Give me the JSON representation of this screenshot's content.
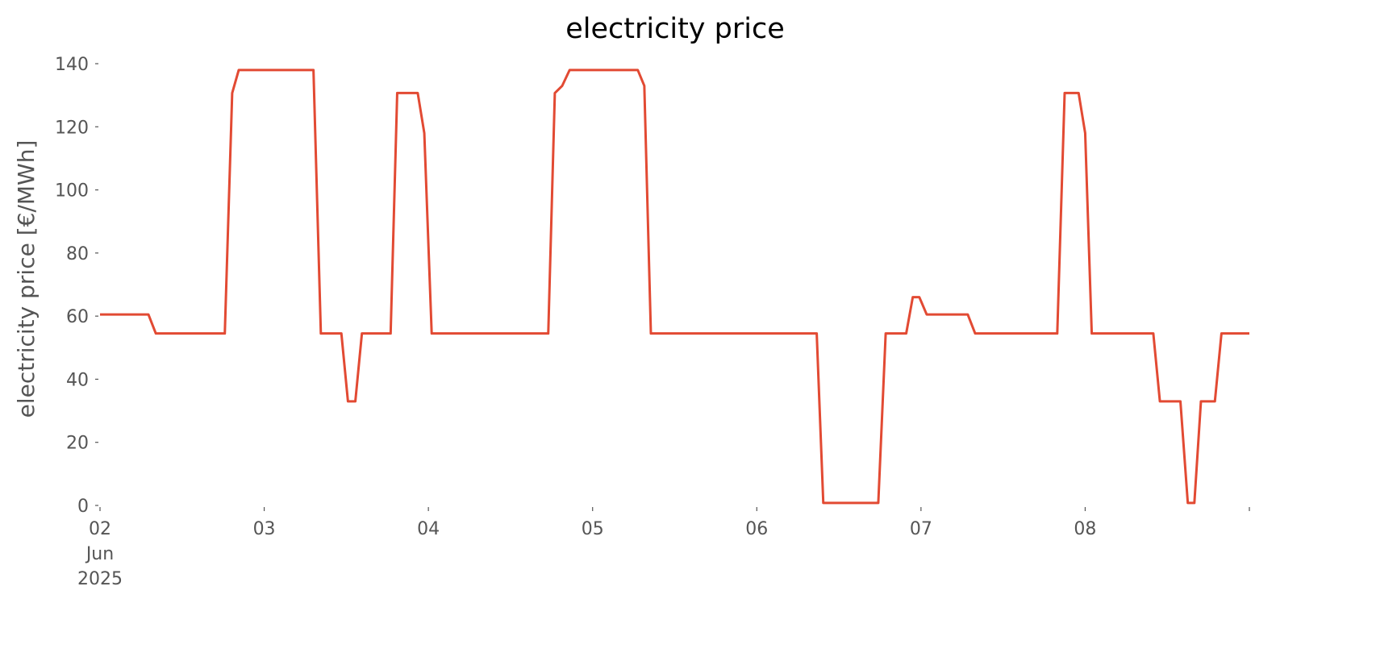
{
  "chart_data": {
    "type": "line",
    "title": "electricity price",
    "y_label": "electricity price [€/MWh]",
    "x": [
      2.0,
      2.295,
      2.34,
      2.76,
      2.805,
      2.845,
      3.3,
      3.345,
      3.47,
      3.51,
      3.555,
      3.595,
      3.77,
      3.81,
      3.935,
      3.975,
      4.02,
      4.73,
      4.77,
      4.815,
      4.86,
      5.275,
      5.315,
      5.355,
      6.365,
      6.405,
      6.74,
      6.785,
      6.91,
      6.95,
      6.99,
      7.035,
      7.285,
      7.33,
      7.83,
      7.875,
      7.96,
      8.0,
      8.04,
      8.415,
      8.455,
      8.58,
      8.625,
      8.665,
      8.705,
      8.79,
      8.83,
      9.0
    ],
    "series": [
      {
        "name": "electricity price",
        "color": "#e24a33",
        "values": [
          60.5,
          60.5,
          54.5,
          54.5,
          130.7,
          138,
          138,
          54.5,
          54.5,
          33,
          33,
          54.5,
          54.5,
          130.7,
          130.7,
          118,
          54.5,
          54.5,
          130.7,
          133,
          138,
          138,
          133,
          54.5,
          54.5,
          0.8,
          0.8,
          54.5,
          54.5,
          66,
          66,
          60.5,
          60.5,
          54.5,
          54.5,
          130.7,
          130.7,
          118,
          54.5,
          54.5,
          33,
          33,
          0.8,
          0.8,
          33,
          33,
          54.5,
          54.5
        ]
      }
    ],
    "xlim": [
      2,
      9
    ],
    "xticks": [
      {
        "value": 2,
        "label": "02\nJun\n2025"
      },
      {
        "value": 3,
        "label": "03"
      },
      {
        "value": 4,
        "label": "04"
      },
      {
        "value": 5,
        "label": "05"
      },
      {
        "value": 6,
        "label": "06"
      },
      {
        "value": 7,
        "label": "07"
      },
      {
        "value": 8,
        "label": "08"
      }
    ],
    "ylim": [
      0,
      140
    ],
    "yticks": [
      0,
      20,
      40,
      60,
      80,
      100,
      120,
      140
    ],
    "grid": false
  }
}
